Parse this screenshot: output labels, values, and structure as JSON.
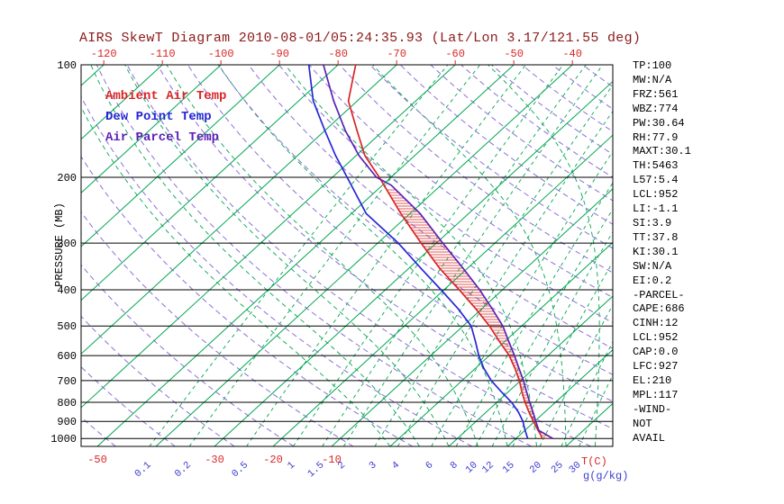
{
  "title": "AIRS SkewT Diagram 2010-08-01/05:24:35.93 (Lat/Lon 3.17/121.55 deg)",
  "legend": {
    "ambient": "Ambient Air Temp",
    "dewpoint": "Dew Point Temp",
    "parcel": "Air Parcel Temp"
  },
  "axes": {
    "pressure_label": "PRESSURE (MB)",
    "pressure_ticks": [
      100,
      200,
      300,
      400,
      500,
      600,
      700,
      800,
      900,
      1000
    ],
    "top_temp_ticks": [
      -120,
      -110,
      -100,
      -90,
      -80,
      -70,
      -60,
      -50,
      -40
    ],
    "bottom_temp_ticks": [
      -50,
      -30,
      -20,
      -10
    ],
    "temp_unit_label": "T(C)",
    "mixing_ratio_ticks": [
      0.1,
      0.2,
      0.5,
      1,
      1.5,
      2,
      3,
      4,
      6,
      8,
      10,
      12,
      15,
      20,
      25,
      30
    ],
    "mixing_unit_label": "g(g/kg)"
  },
  "indices_panel": [
    "TP:100",
    "MW:N/A",
    "FRZ:561",
    "WBZ:774",
    "PW:30.64",
    "RH:77.9",
    "MAXT:30.1",
    "TH:5463",
    "L57:5.4",
    "LCL:952",
    "LI:-1.1",
    "SI:3.9",
    "TT:37.8",
    "KI:30.1",
    "SW:N/A",
    "EI:0.2",
    "-PARCEL-",
    "CAPE:686",
    "CINH:12",
    "LCL:952",
    "CAP:0.0",
    "LFC:927",
    "EL:210",
    "MPL:117",
    "-WIND-",
    "NOT",
    "AVAIL"
  ],
  "colors": {
    "title": "#8b1a1a",
    "frame": "#000000",
    "isotherm_green": "#00a651",
    "moist_green_dashed": "#00a651",
    "dry_adiabat_purple": "#8d6fd8",
    "ambient_red": "#d92525",
    "dewpoint_blue": "#2626d8",
    "parcel_purple": "#5b21b6",
    "mixing_label_blue": "#3c3ccf",
    "black_text": "#000000"
  },
  "chart_data": {
    "type": "line",
    "subtype": "skewt-logp",
    "title": "AIRS SkewT Diagram 2010-08-01/05:24:35.93 (Lat/Lon 3.17/121.55 deg)",
    "xlabel": "T(C)",
    "ylabel": "PRESSURE (MB)",
    "pressure_range": [
      100,
      1050
    ],
    "pressure_log_scale": true,
    "isotherms": {
      "start": -160,
      "end": 40,
      "step": 10
    },
    "dry_adiabats_theta_c": {
      "start": -50,
      "end": 200,
      "step": 10
    },
    "moist_adiabats_thetaw_c": {
      "start": 0,
      "end": 40,
      "step": 5
    },
    "mixing_ratio_lines_gkg": [
      0.1,
      0.2,
      0.5,
      1,
      1.5,
      2,
      3,
      4,
      6,
      8,
      10,
      12,
      15,
      20,
      25,
      30
    ],
    "series": [
      {
        "name": "Ambient Air Temp",
        "color_key": "ambient_red",
        "points": [
          [
            1000,
            24.5
          ],
          [
            975,
            23.4
          ],
          [
            950,
            22.2
          ],
          [
            925,
            21.0
          ],
          [
            900,
            19.8
          ],
          [
            850,
            17.3
          ],
          [
            800,
            14.8
          ],
          [
            750,
            12.3
          ],
          [
            700,
            9.8
          ],
          [
            650,
            6.8
          ],
          [
            600,
            3.4
          ],
          [
            550,
            -0.9
          ],
          [
            500,
            -5.5
          ],
          [
            450,
            -11.0
          ],
          [
            400,
            -17.4
          ],
          [
            350,
            -24.8
          ],
          [
            300,
            -32.6
          ],
          [
            250,
            -41.6
          ],
          [
            200,
            -52.0
          ],
          [
            175,
            -58.5
          ],
          [
            150,
            -64.5
          ],
          [
            125,
            -71.5
          ],
          [
            100,
            -77.0
          ]
        ]
      },
      {
        "name": "Dew Point Temp",
        "color_key": "dewpoint_blue",
        "points": [
          [
            1000,
            22.0
          ],
          [
            975,
            21.0
          ],
          [
            950,
            20.0
          ],
          [
            925,
            19.0
          ],
          [
            900,
            18.0
          ],
          [
            850,
            15.5
          ],
          [
            800,
            12.5
          ],
          [
            750,
            8.8
          ],
          [
            700,
            5.0
          ],
          [
            650,
            1.5
          ],
          [
            600,
            -1.8
          ],
          [
            550,
            -5.0
          ],
          [
            500,
            -8.6
          ],
          [
            450,
            -14.0
          ],
          [
            400,
            -20.5
          ],
          [
            350,
            -28.0
          ],
          [
            300,
            -36.5
          ],
          [
            250,
            -47.5
          ],
          [
            200,
            -57.5
          ],
          [
            175,
            -63.5
          ],
          [
            150,
            -70.0
          ],
          [
            125,
            -77.5
          ],
          [
            100,
            -85.0
          ]
        ]
      },
      {
        "name": "Air Parcel Temp",
        "color_key": "parcel_purple",
        "points": [
          [
            1000,
            26.3
          ],
          [
            952,
            22.4
          ],
          [
            900,
            20.2
          ],
          [
            850,
            18.0
          ],
          [
            800,
            15.6
          ],
          [
            750,
            13.1
          ],
          [
            700,
            10.5
          ],
          [
            650,
            7.5
          ],
          [
            600,
            4.3
          ],
          [
            550,
            0.7
          ],
          [
            500,
            -3.2
          ],
          [
            450,
            -8.2
          ],
          [
            400,
            -13.9
          ],
          [
            350,
            -20.8
          ],
          [
            300,
            -28.9
          ],
          [
            250,
            -38.3
          ],
          [
            210,
            -48.5
          ],
          [
            200,
            -52.5
          ],
          [
            175,
            -59.5
          ],
          [
            150,
            -66.5
          ],
          [
            125,
            -74.0
          ],
          [
            100,
            -82.5
          ]
        ]
      }
    ],
    "cape_hatch": {
      "pressure_top": 215,
      "pressure_bottom": 1005,
      "between": [
        "Air Parcel Temp",
        "Ambient Air Temp"
      ]
    }
  }
}
